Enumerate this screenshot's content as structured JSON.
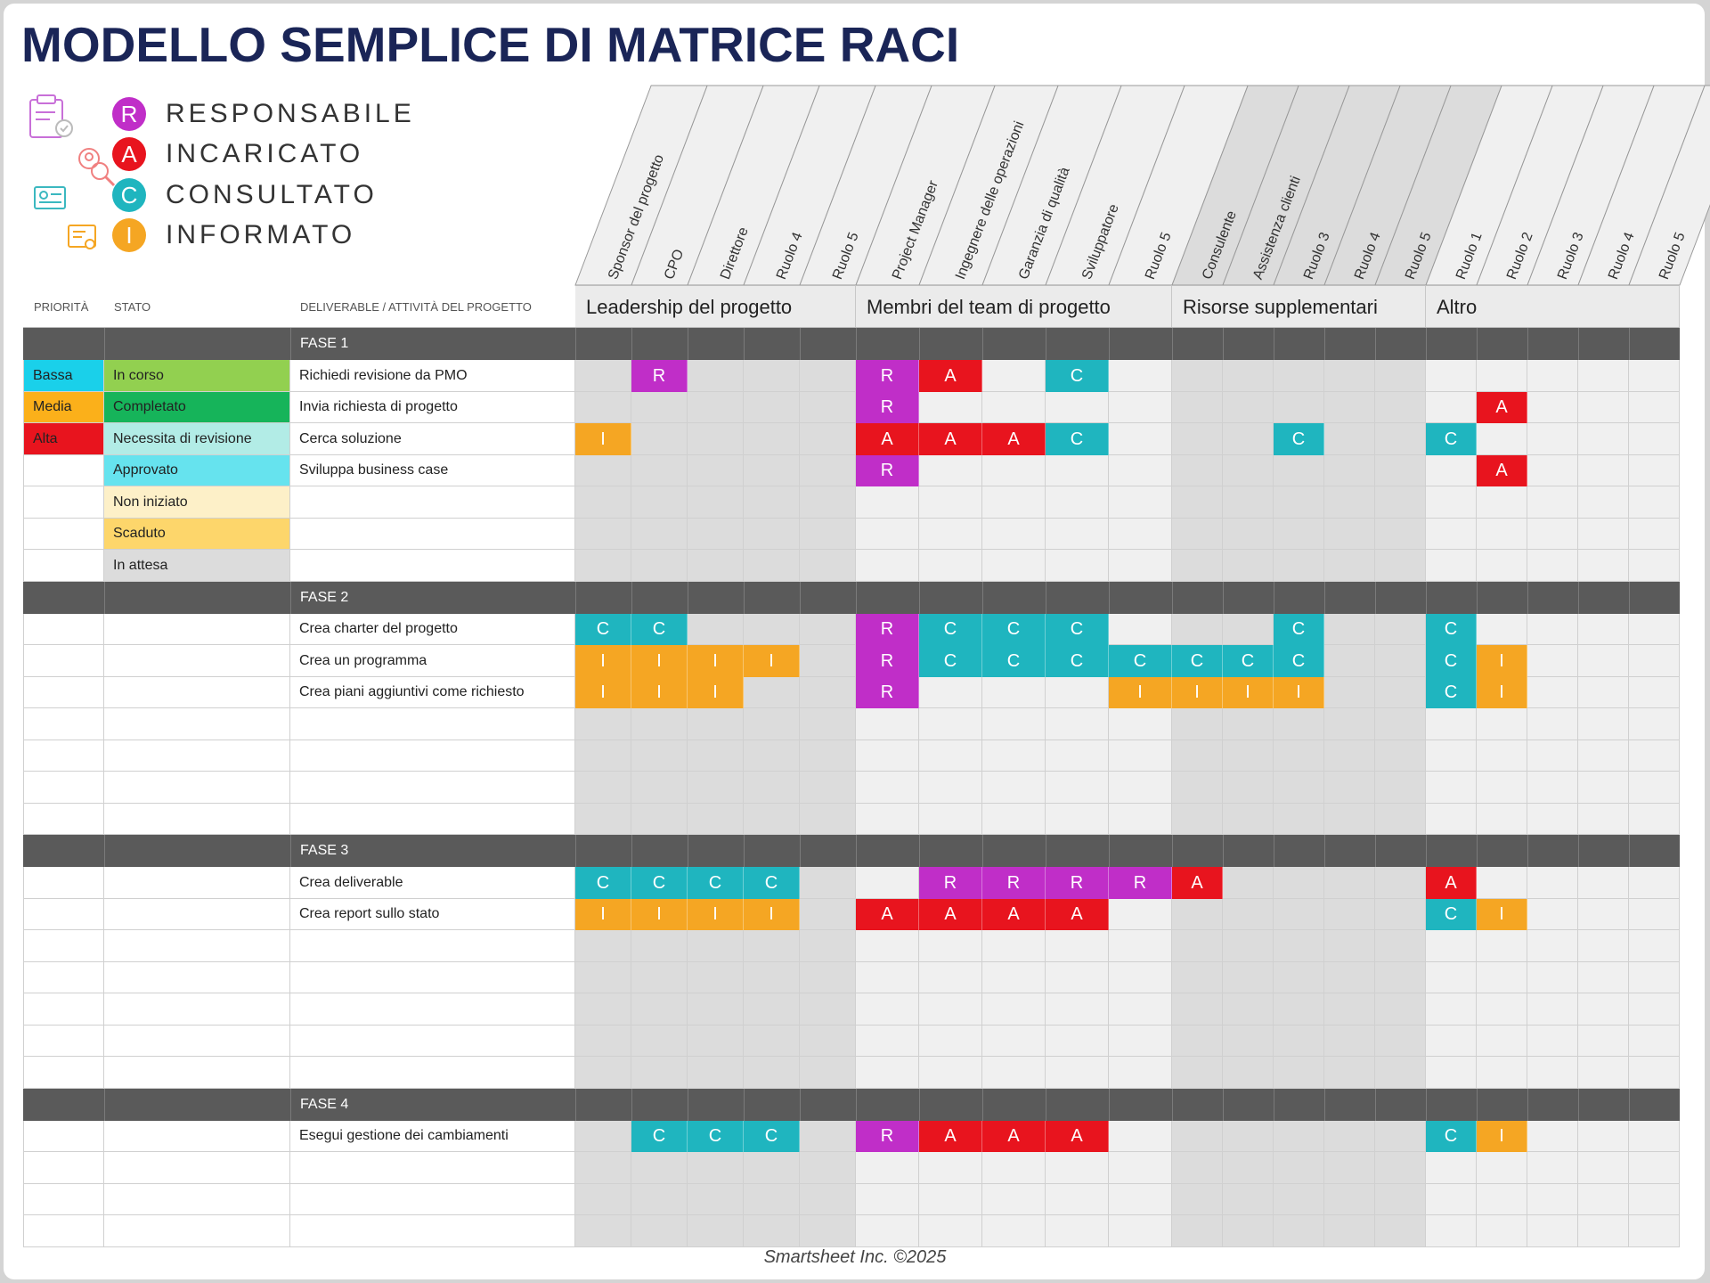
{
  "title": "MODELLO SEMPLICE DI MATRICE RACI",
  "legend": [
    {
      "letter": "R",
      "label": "RESPONSABILE",
      "color": "#c02ec8"
    },
    {
      "letter": "A",
      "label": "INCARICATO",
      "color": "#e8141e"
    },
    {
      "letter": "C",
      "label": "CONSULTATO",
      "color": "#1fb5bf"
    },
    {
      "letter": "I",
      "label": "INFORMATO",
      "color": "#f5a623"
    }
  ],
  "legend_icons": [
    "clipboard-check-icon",
    "user-search-icon",
    "id-card-icon",
    "certificate-icon"
  ],
  "headers": {
    "priority": "PRIORITÀ",
    "status": "STATO",
    "task": "DELIVERABLE / ATTIVITÀ DEL PROGETTO"
  },
  "groups": [
    {
      "label": "Leadership del progetto",
      "count": 5
    },
    {
      "label": "Membri del team di progetto",
      "count": 5
    },
    {
      "label": "Risorse supplementari",
      "count": 5
    },
    {
      "label": "Altro",
      "count": 5
    }
  ],
  "roles": [
    "Sponsor del progetto",
    "CPO",
    "Direttore",
    "Ruolo 4",
    "Ruolo 5",
    "Project Manager",
    "Ingegnere delle operazioni",
    "Garanzia di qualità",
    "Sviluppatore",
    "Ruolo 5",
    "Consulente",
    "Assistenza clienti",
    "Ruolo 3",
    "Ruolo 4",
    "Ruolo 5",
    "Ruolo 1",
    "Ruolo 2",
    "Ruolo 3",
    "Ruolo 4",
    "Ruolo 5"
  ],
  "colors": {
    "R": "#c02ec8",
    "A": "#e8141e",
    "C": "#1fb5bf",
    "I": "#f5a623"
  },
  "phases": [
    {
      "label": "FASE 1",
      "rows": [
        {
          "priority": "Bassa",
          "priority_color": "#1ad0ea",
          "status": "In corso",
          "status_color": "#92d050",
          "task": "Richiedi revisione da PMO",
          "raci": [
            "",
            "R",
            "",
            "",
            "",
            "R",
            "A",
            "",
            "C",
            "",
            "",
            "",
            "",
            "",
            "",
            "",
            "",
            "",
            "",
            ""
          ]
        },
        {
          "priority": "Media",
          "priority_color": "#fbb01a",
          "status": "Completato",
          "status_color": "#16b45a",
          "task": "Invia richiesta di progetto",
          "raci": [
            "",
            "",
            "",
            "",
            "",
            "R",
            "",
            "",
            "",
            "",
            "",
            "",
            "",
            "",
            "",
            "",
            "A",
            "",
            "",
            ""
          ]
        },
        {
          "priority": "Alta",
          "priority_color": "#e8141e",
          "status": "Necessita di revisione",
          "status_color": "#b2ece6",
          "task": "Cerca soluzione",
          "raci": [
            "I",
            "",
            "",
            "",
            "",
            "A",
            "A",
            "A",
            "C",
            "",
            "",
            "",
            "C",
            "",
            "",
            "C",
            "",
            "",
            "",
            ""
          ]
        },
        {
          "priority": "",
          "priority_color": "",
          "status": "Approvato",
          "status_color": "#66e3ee",
          "task": "Sviluppa business case",
          "raci": [
            "",
            "",
            "",
            "",
            "",
            "R",
            "",
            "",
            "",
            "",
            "",
            "",
            "",
            "",
            "",
            "",
            "A",
            "",
            "",
            ""
          ]
        },
        {
          "priority": "",
          "priority_color": "",
          "status": "Non iniziato",
          "status_color": "#fdf0c8",
          "task": "",
          "raci": [
            "",
            "",
            "",
            "",
            "",
            "",
            "",
            "",
            "",
            "",
            "",
            "",
            "",
            "",
            "",
            "",
            "",
            "",
            "",
            ""
          ]
        },
        {
          "priority": "",
          "priority_color": "",
          "status": "Scaduto",
          "status_color": "#fdd66b",
          "task": "",
          "raci": [
            "",
            "",
            "",
            "",
            "",
            "",
            "",
            "",
            "",
            "",
            "",
            "",
            "",
            "",
            "",
            "",
            "",
            "",
            "",
            ""
          ]
        },
        {
          "priority": "",
          "priority_color": "",
          "status": "In attesa",
          "status_color": "#dcdcdc",
          "task": "",
          "raci": [
            "",
            "",
            "",
            "",
            "",
            "",
            "",
            "",
            "",
            "",
            "",
            "",
            "",
            "",
            "",
            "",
            "",
            "",
            "",
            ""
          ]
        }
      ]
    },
    {
      "label": "FASE 2",
      "rows": [
        {
          "priority": "",
          "priority_color": "",
          "status": "",
          "status_color": "",
          "task": "Crea charter del progetto",
          "raci": [
            "C",
            "C",
            "",
            "",
            "",
            "R",
            "C",
            "C",
            "C",
            "",
            "",
            "",
            "C",
            "",
            "",
            "C",
            "",
            "",
            "",
            ""
          ]
        },
        {
          "priority": "",
          "priority_color": "",
          "status": "",
          "status_color": "",
          "task": "Crea un programma",
          "raci": [
            "I",
            "I",
            "I",
            "I",
            "",
            "R",
            "C",
            "C",
            "C",
            "C",
            "C",
            "C",
            "C",
            "",
            "",
            "C",
            "I",
            "",
            "",
            ""
          ]
        },
        {
          "priority": "",
          "priority_color": "",
          "status": "",
          "status_color": "",
          "task": "Crea piani aggiuntivi come richiesto",
          "raci": [
            "I",
            "I",
            "I",
            "",
            "",
            "R",
            "",
            "",
            "",
            "I",
            "I",
            "I",
            "I",
            "",
            "",
            "C",
            "I",
            "",
            "",
            ""
          ]
        },
        {
          "priority": "",
          "priority_color": "",
          "status": "",
          "status_color": "",
          "task": "",
          "raci": [
            "",
            "",
            "",
            "",
            "",
            "",
            "",
            "",
            "",
            "",
            "",
            "",
            "",
            "",
            "",
            "",
            "",
            "",
            "",
            ""
          ]
        },
        {
          "priority": "",
          "priority_color": "",
          "status": "",
          "status_color": "",
          "task": "",
          "raci": [
            "",
            "",
            "",
            "",
            "",
            "",
            "",
            "",
            "",
            "",
            "",
            "",
            "",
            "",
            "",
            "",
            "",
            "",
            "",
            ""
          ]
        },
        {
          "priority": "",
          "priority_color": "",
          "status": "",
          "status_color": "",
          "task": "",
          "raci": [
            "",
            "",
            "",
            "",
            "",
            "",
            "",
            "",
            "",
            "",
            "",
            "",
            "",
            "",
            "",
            "",
            "",
            "",
            "",
            ""
          ]
        },
        {
          "priority": "",
          "priority_color": "",
          "status": "",
          "status_color": "",
          "task": "",
          "raci": [
            "",
            "",
            "",
            "",
            "",
            "",
            "",
            "",
            "",
            "",
            "",
            "",
            "",
            "",
            "",
            "",
            "",
            "",
            "",
            ""
          ]
        }
      ]
    },
    {
      "label": "FASE 3",
      "rows": [
        {
          "priority": "",
          "priority_color": "",
          "status": "",
          "status_color": "",
          "task": "Crea deliverable",
          "raci": [
            "C",
            "C",
            "C",
            "C",
            "",
            "",
            "R",
            "R",
            "R",
            "R",
            "A",
            "",
            "",
            "",
            "",
            "A",
            "",
            "",
            "",
            ""
          ]
        },
        {
          "priority": "",
          "priority_color": "",
          "status": "",
          "status_color": "",
          "task": "Crea report sullo stato",
          "raci": [
            "I",
            "I",
            "I",
            "I",
            "",
            "A",
            "A",
            "A",
            "A",
            "",
            "",
            "",
            "",
            "",
            "",
            "C",
            "I",
            "",
            "",
            ""
          ]
        },
        {
          "priority": "",
          "priority_color": "",
          "status": "",
          "status_color": "",
          "task": "",
          "raci": [
            "",
            "",
            "",
            "",
            "",
            "",
            "",
            "",
            "",
            "",
            "",
            "",
            "",
            "",
            "",
            "",
            "",
            "",
            "",
            ""
          ]
        },
        {
          "priority": "",
          "priority_color": "",
          "status": "",
          "status_color": "",
          "task": "",
          "raci": [
            "",
            "",
            "",
            "",
            "",
            "",
            "",
            "",
            "",
            "",
            "",
            "",
            "",
            "",
            "",
            "",
            "",
            "",
            "",
            ""
          ]
        },
        {
          "priority": "",
          "priority_color": "",
          "status": "",
          "status_color": "",
          "task": "",
          "raci": [
            "",
            "",
            "",
            "",
            "",
            "",
            "",
            "",
            "",
            "",
            "",
            "",
            "",
            "",
            "",
            "",
            "",
            "",
            "",
            ""
          ]
        },
        {
          "priority": "",
          "priority_color": "",
          "status": "",
          "status_color": "",
          "task": "",
          "raci": [
            "",
            "",
            "",
            "",
            "",
            "",
            "",
            "",
            "",
            "",
            "",
            "",
            "",
            "",
            "",
            "",
            "",
            "",
            "",
            ""
          ]
        },
        {
          "priority": "",
          "priority_color": "",
          "status": "",
          "status_color": "",
          "task": "",
          "raci": [
            "",
            "",
            "",
            "",
            "",
            "",
            "",
            "",
            "",
            "",
            "",
            "",
            "",
            "",
            "",
            "",
            "",
            "",
            "",
            ""
          ]
        }
      ]
    },
    {
      "label": "FASE 4",
      "rows": [
        {
          "priority": "",
          "priority_color": "",
          "status": "",
          "status_color": "",
          "task": "Esegui gestione dei cambiamenti",
          "raci": [
            "",
            "C",
            "C",
            "C",
            "",
            "R",
            "A",
            "A",
            "A",
            "",
            "",
            "",
            "",
            "",
            "",
            "C",
            "I",
            "",
            "",
            ""
          ]
        },
        {
          "priority": "",
          "priority_color": "",
          "status": "",
          "status_color": "",
          "task": "",
          "raci": [
            "",
            "",
            "",
            "",
            "",
            "",
            "",
            "",
            "",
            "",
            "",
            "",
            "",
            "",
            "",
            "",
            "",
            "",
            "",
            ""
          ]
        },
        {
          "priority": "",
          "priority_color": "",
          "status": "",
          "status_color": "",
          "task": "",
          "raci": [
            "",
            "",
            "",
            "",
            "",
            "",
            "",
            "",
            "",
            "",
            "",
            "",
            "",
            "",
            "",
            "",
            "",
            "",
            "",
            ""
          ]
        },
        {
          "priority": "",
          "priority_color": "",
          "status": "",
          "status_color": "",
          "task": "",
          "raci": [
            "",
            "",
            "",
            "",
            "",
            "",
            "",
            "",
            "",
            "",
            "",
            "",
            "",
            "",
            "",
            "",
            "",
            "",
            "",
            ""
          ]
        }
      ]
    }
  ],
  "footer": "Smartsheet Inc. ©2025"
}
